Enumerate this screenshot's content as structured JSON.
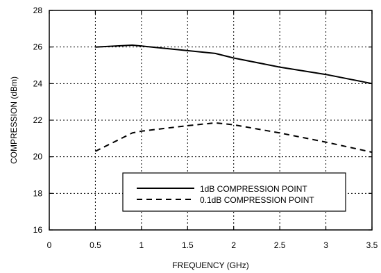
{
  "chart_data": {
    "type": "line",
    "title": "",
    "xlabel": "FREQUENCY (GHz)",
    "ylabel": "COMPRESSION (dBm)",
    "xlim": [
      0,
      3.5
    ],
    "ylim": [
      16,
      28
    ],
    "x_ticks": [
      0,
      0.5,
      1,
      1.5,
      2,
      2.5,
      3,
      3.5
    ],
    "x_tick_labels": [
      "0",
      "0.5",
      "1",
      "1.5",
      "2",
      "2.5",
      "3",
      "3.5"
    ],
    "y_ticks": [
      16,
      18,
      20,
      22,
      24,
      26,
      28
    ],
    "y_tick_labels": [
      "16",
      "18",
      "20",
      "22",
      "24",
      "26",
      "28"
    ],
    "grid": true,
    "grid_style": "dotted",
    "legend_position": "bottom-center",
    "series": [
      {
        "name": "1dB COMPRESSION POINT",
        "line_style": "solid",
        "color": "#000000",
        "x": [
          0.5,
          0.9,
          1.0,
          1.8,
          2.0,
          2.5,
          3.0,
          3.5
        ],
        "y": [
          26.0,
          26.1,
          26.05,
          25.65,
          25.4,
          24.9,
          24.5,
          24.0
        ]
      },
      {
        "name": "0.1dB COMPRESSION POINT",
        "line_style": "dashed",
        "color": "#000000",
        "x": [
          0.5,
          0.9,
          1.0,
          1.5,
          1.8,
          2.0,
          2.5,
          3.0,
          3.5
        ],
        "y": [
          20.3,
          21.3,
          21.4,
          21.7,
          21.85,
          21.75,
          21.3,
          20.8,
          20.25
        ]
      }
    ]
  }
}
